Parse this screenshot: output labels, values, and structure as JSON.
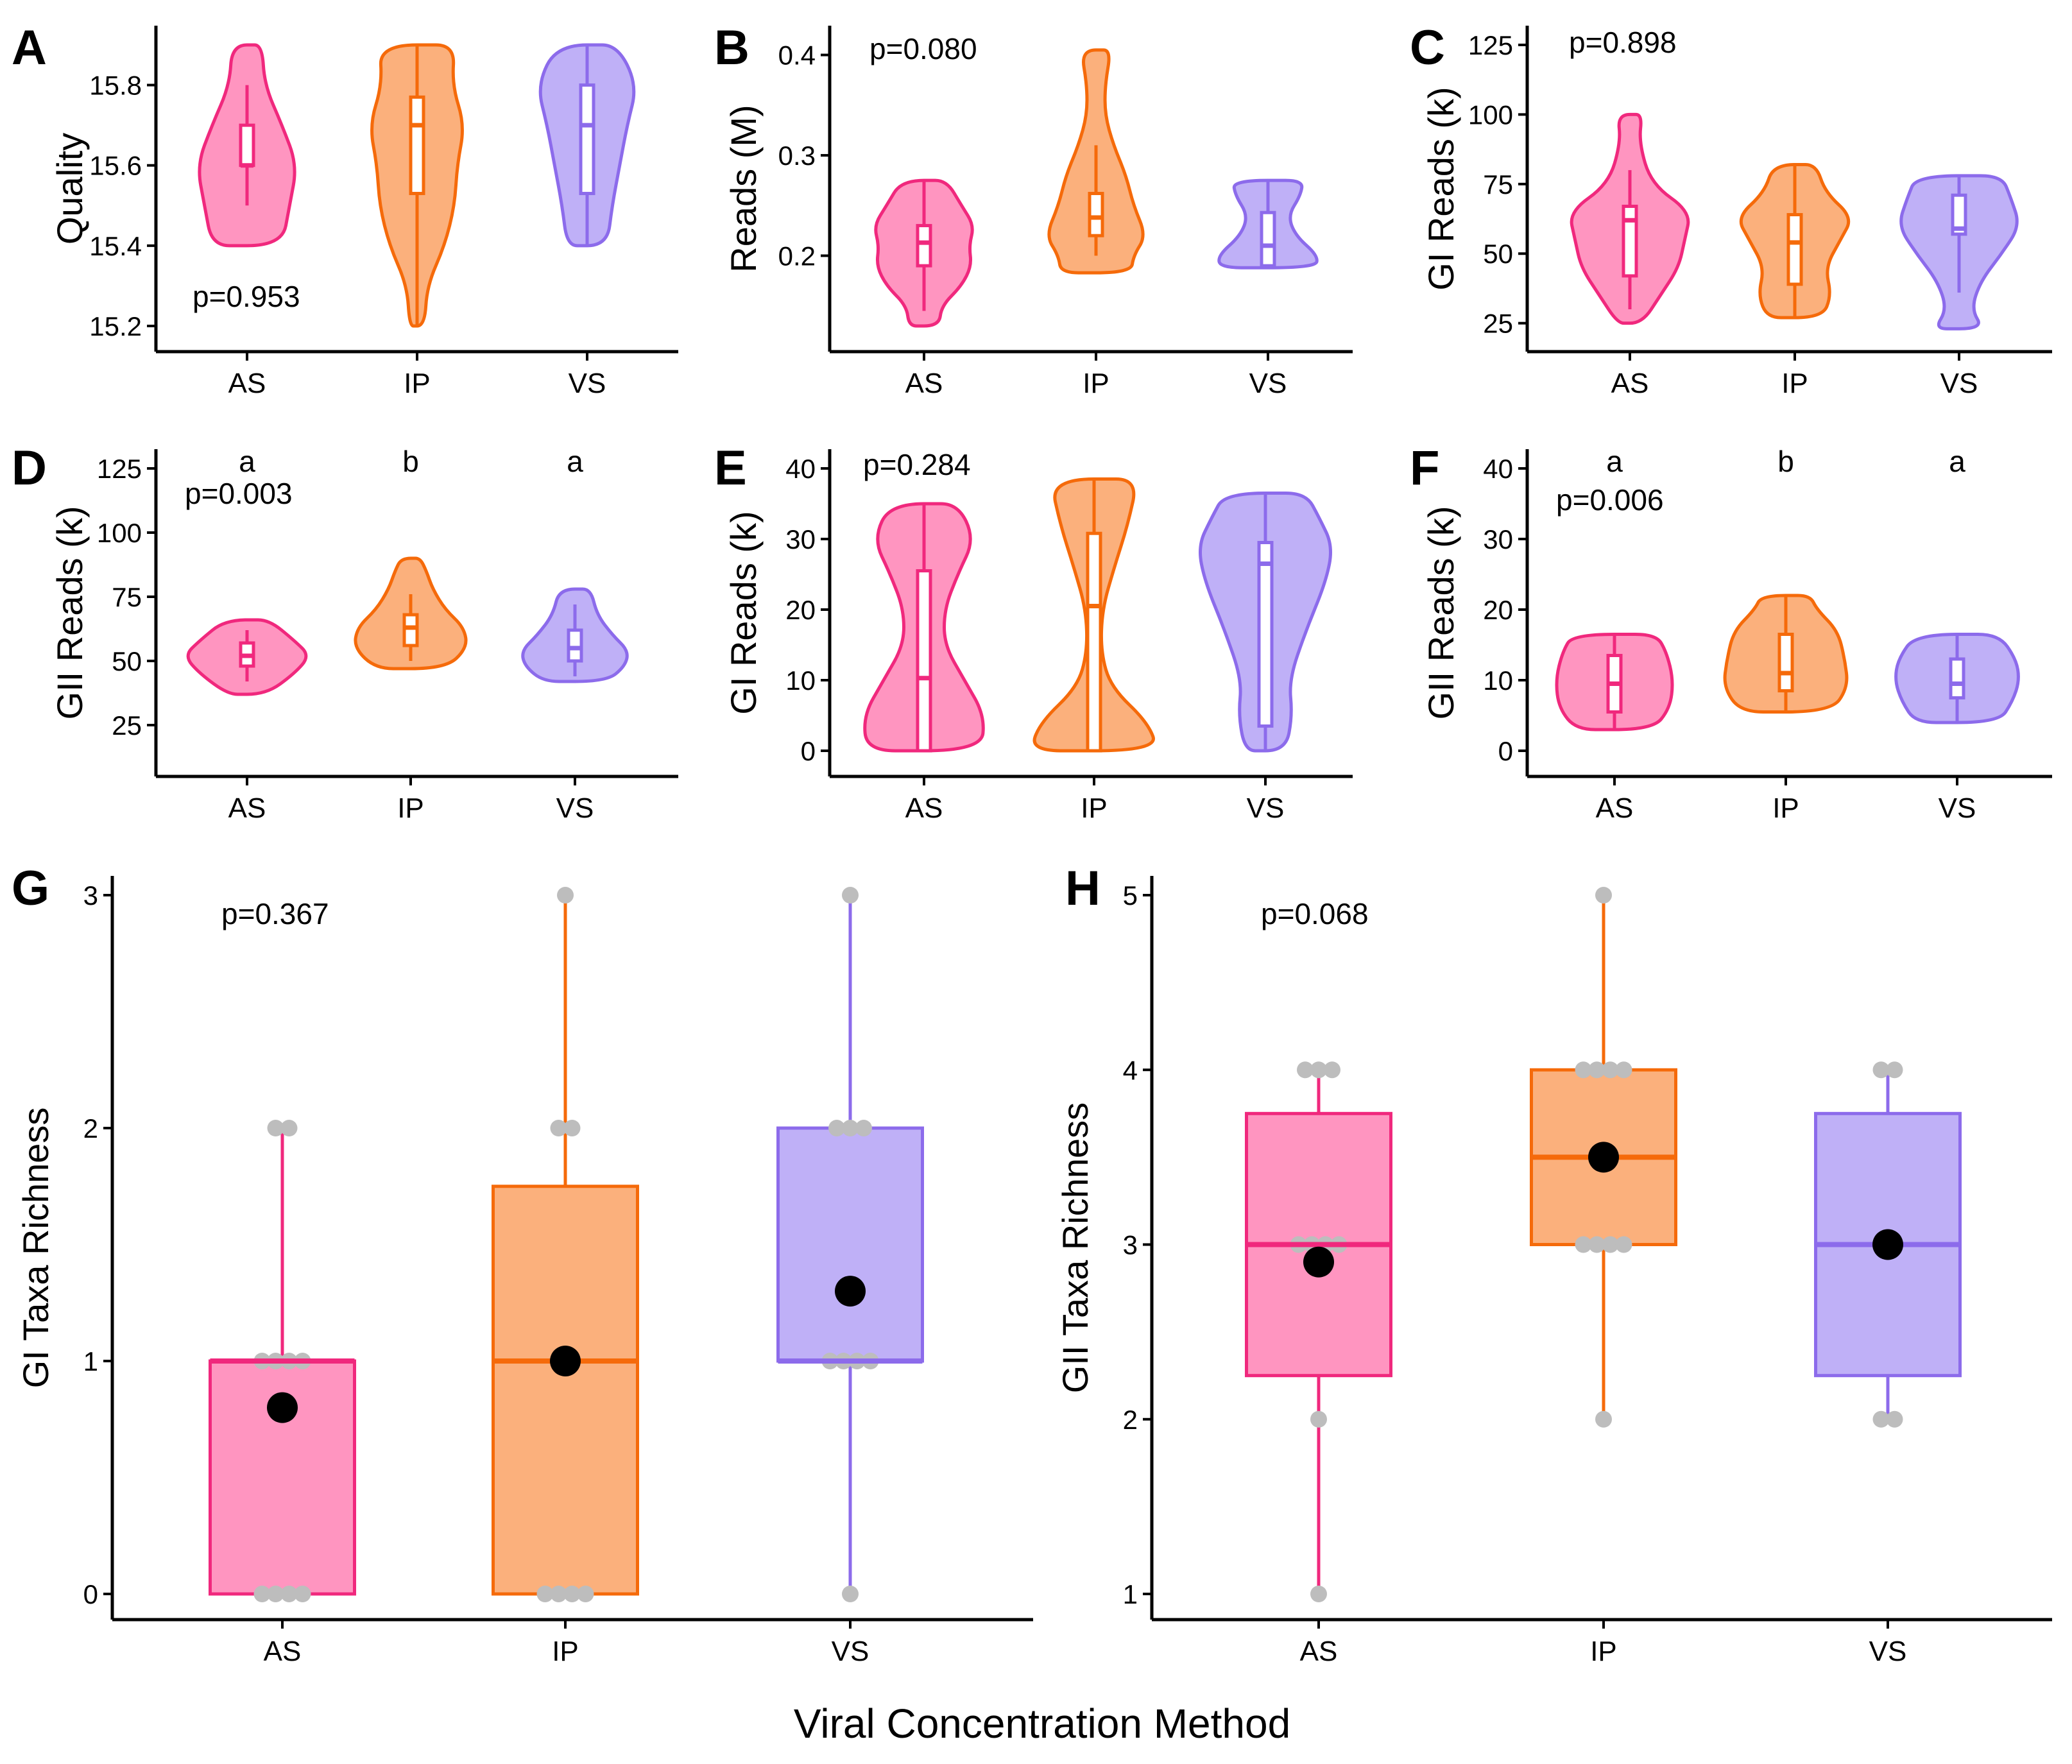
{
  "figure": {
    "x_axis_title": "Viral Concentration Method",
    "groups": [
      "AS",
      "IP",
      "VS"
    ],
    "colors": {
      "AS": {
        "line": "#F0287D",
        "fill": "#FF95C0"
      },
      "IP": {
        "line": "#F56A0A",
        "fill": "#FBB07C"
      },
      "VS": {
        "line": "#8C6BEB",
        "fill": "#BFB0F7"
      },
      "points": "#BDBDBD",
      "mean": "#000000"
    }
  },
  "chart_data": [
    {
      "panel": "A",
      "type": "violin",
      "ylabel": "Quality",
      "ylim": [
        15.2,
        15.9
      ],
      "yticks": [
        15.2,
        15.4,
        15.6,
        15.8
      ],
      "p_value": "p=0.953",
      "categories": [
        "AS",
        "IP",
        "VS"
      ],
      "series": [
        {
          "name": "AS",
          "min": 15.4,
          "q1": 15.6,
          "median": 15.6,
          "q3": 15.7,
          "max": 15.9,
          "whisker_low": 15.5,
          "whisker_high": 15.8,
          "density": [
            [
              15.4,
              0.7
            ],
            [
              15.5,
              0.85
            ],
            [
              15.6,
              1.0
            ],
            [
              15.7,
              0.7
            ],
            [
              15.8,
              0.35
            ],
            [
              15.9,
              0.3
            ]
          ]
        },
        {
          "name": "IP",
          "min": 15.2,
          "q1": 15.53,
          "median": 15.7,
          "q3": 15.77,
          "max": 15.9,
          "whisker_low": 15.2,
          "whisker_high": 15.9,
          "density": [
            [
              15.2,
              0.15
            ],
            [
              15.3,
              0.2
            ],
            [
              15.4,
              0.55
            ],
            [
              15.5,
              0.75
            ],
            [
              15.6,
              0.8
            ],
            [
              15.7,
              0.95
            ],
            [
              15.8,
              0.7
            ],
            [
              15.9,
              0.75
            ]
          ]
        },
        {
          "name": "VS",
          "min": 15.4,
          "q1": 15.53,
          "median": 15.7,
          "q3": 15.8,
          "max": 15.9,
          "whisker_low": 15.4,
          "whisker_high": 15.9,
          "density": [
            [
              15.4,
              0.4
            ],
            [
              15.5,
              0.5
            ],
            [
              15.6,
              0.65
            ],
            [
              15.7,
              0.8
            ],
            [
              15.8,
              1.0
            ],
            [
              15.9,
              0.6
            ]
          ]
        }
      ]
    },
    {
      "panel": "B",
      "type": "violin",
      "ylabel": "Reads (M)",
      "ylim": [
        0.13,
        0.41
      ],
      "yticks": [
        0.2,
        0.3,
        0.4
      ],
      "p_value": "p=0.080",
      "categories": [
        "AS",
        "IP",
        "VS"
      ],
      "series": [
        {
          "name": "AS",
          "min": 0.13,
          "q1": 0.19,
          "median": 0.213,
          "q3": 0.23,
          "max": 0.275,
          "whisker_low": 0.145,
          "whisker_high": 0.275,
          "density": [
            [
              0.13,
              0.3
            ],
            [
              0.15,
              0.35
            ],
            [
              0.17,
              0.75
            ],
            [
              0.19,
              0.95
            ],
            [
              0.21,
              0.9
            ],
            [
              0.23,
              1.0
            ],
            [
              0.25,
              0.75
            ],
            [
              0.275,
              0.45
            ]
          ]
        },
        {
          "name": "IP",
          "min": 0.183,
          "q1": 0.22,
          "median": 0.238,
          "q3": 0.262,
          "max": 0.405,
          "whisker_low": 0.2,
          "whisker_high": 0.31,
          "density": [
            [
              0.183,
              0.7
            ],
            [
              0.2,
              0.75
            ],
            [
              0.22,
              1.0
            ],
            [
              0.25,
              0.75
            ],
            [
              0.28,
              0.6
            ],
            [
              0.31,
              0.35
            ],
            [
              0.34,
              0.18
            ],
            [
              0.37,
              0.18
            ],
            [
              0.405,
              0.3
            ]
          ]
        },
        {
          "name": "VS",
          "min": 0.188,
          "q1": 0.19,
          "median": 0.21,
          "q3": 0.243,
          "max": 0.275,
          "whisker_low": 0.188,
          "whisker_high": 0.275,
          "density": [
            [
              0.188,
              0.95
            ],
            [
              0.2,
              1.0
            ],
            [
              0.22,
              0.55
            ],
            [
              0.24,
              0.4
            ],
            [
              0.26,
              0.65
            ],
            [
              0.275,
              0.7
            ]
          ]
        }
      ]
    },
    {
      "panel": "C",
      "type": "violin",
      "ylabel": "GI Reads (k)",
      "ylim": [
        24,
        125
      ],
      "yticks": [
        25,
        50,
        75,
        100,
        125
      ],
      "p_value": "p=0.898",
      "categories": [
        "AS",
        "IP",
        "VS"
      ],
      "series": [
        {
          "name": "AS",
          "min": 25,
          "q1": 42,
          "median": 62,
          "q3": 67,
          "max": 100,
          "whisker_low": 30,
          "whisker_high": 80,
          "density": [
            [
              25,
              0.2
            ],
            [
              35,
              0.5
            ],
            [
              45,
              0.8
            ],
            [
              55,
              0.9
            ],
            [
              65,
              1.0
            ],
            [
              75,
              0.35
            ],
            [
              90,
              0.15
            ],
            [
              100,
              0.2
            ]
          ]
        },
        {
          "name": "IP",
          "min": 27,
          "q1": 39,
          "median": 54,
          "q3": 64,
          "max": 82,
          "whisker_low": 27,
          "whisker_high": 82,
          "density": [
            [
              27,
              0.45
            ],
            [
              35,
              0.6
            ],
            [
              45,
              0.5
            ],
            [
              55,
              0.75
            ],
            [
              63,
              0.95
            ],
            [
              72,
              0.5
            ],
            [
              82,
              0.35
            ]
          ]
        },
        {
          "name": "VS",
          "min": 23,
          "q1": 57,
          "median": 59,
          "q3": 71,
          "max": 78,
          "whisker_low": 36,
          "whisker_high": 78,
          "density": [
            [
              23,
              0.4
            ],
            [
              30,
              0.2
            ],
            [
              40,
              0.35
            ],
            [
              50,
              0.7
            ],
            [
              60,
              1.0
            ],
            [
              70,
              0.85
            ],
            [
              78,
              0.7
            ]
          ]
        }
      ]
    },
    {
      "panel": "D",
      "type": "violin",
      "ylabel": "GII Reads (k)",
      "ylim": [
        15,
        125
      ],
      "yticks": [
        25,
        50,
        75,
        100,
        125
      ],
      "p_value": "p=0.003",
      "letters": [
        "a",
        "b",
        "a"
      ],
      "categories": [
        "AS",
        "IP",
        "VS"
      ],
      "series": [
        {
          "name": "AS",
          "min": 37,
          "q1": 48,
          "median": 52,
          "q3": 57,
          "max": 66,
          "whisker_low": 42,
          "whisker_high": 62,
          "density": [
            [
              37,
              0.3
            ],
            [
              45,
              0.75
            ],
            [
              52,
              1.0
            ],
            [
              58,
              0.75
            ],
            [
              66,
              0.35
            ]
          ]
        },
        {
          "name": "IP",
          "min": 47,
          "q1": 56,
          "median": 63,
          "q3": 68,
          "max": 90,
          "whisker_low": 50,
          "whisker_high": 76,
          "density": [
            [
              47,
              0.55
            ],
            [
              55,
              0.9
            ],
            [
              63,
              0.85
            ],
            [
              70,
              0.55
            ],
            [
              78,
              0.35
            ],
            [
              85,
              0.25
            ],
            [
              90,
              0.15
            ]
          ]
        },
        {
          "name": "VS",
          "min": 42,
          "q1": 50,
          "median": 55,
          "q3": 62,
          "max": 78,
          "whisker_low": 44,
          "whisker_high": 72,
          "density": [
            [
              42,
              0.5
            ],
            [
              48,
              0.8
            ],
            [
              54,
              0.85
            ],
            [
              60,
              0.6
            ],
            [
              68,
              0.35
            ],
            [
              78,
              0.25
            ]
          ]
        }
      ]
    },
    {
      "panel": "E",
      "type": "violin",
      "ylabel": "GI Reads (k)",
      "ylim": [
        0,
        40
      ],
      "yticks": [
        0,
        10,
        20,
        30,
        40
      ],
      "p_value": "p=0.284",
      "categories": [
        "AS",
        "IP",
        "VS"
      ],
      "series": [
        {
          "name": "AS",
          "min": 0,
          "q1": 0,
          "median": 10.3,
          "q3": 25.5,
          "max": 35,
          "whisker_low": 0,
          "whisker_high": 35,
          "density": [
            [
              0,
              0.85
            ],
            [
              5,
              0.9
            ],
            [
              10,
              0.6
            ],
            [
              15,
              0.3
            ],
            [
              20,
              0.3
            ],
            [
              25,
              0.5
            ],
            [
              30,
              0.75
            ],
            [
              35,
              0.5
            ]
          ]
        },
        {
          "name": "IP",
          "min": 0,
          "q1": 0,
          "median": 20.5,
          "q3": 30.8,
          "max": 38.5,
          "whisker_low": 0,
          "whisker_high": 38.5,
          "density": [
            [
              0,
              0.95
            ],
            [
              4,
              0.8
            ],
            [
              9,
              0.25
            ],
            [
              14,
              0.1
            ],
            [
              20,
              0.12
            ],
            [
              26,
              0.3
            ],
            [
              32,
              0.5
            ],
            [
              38.5,
              0.65
            ]
          ]
        },
        {
          "name": "VS",
          "min": 0,
          "q1": 3.5,
          "median": 26.5,
          "q3": 29.5,
          "max": 36.5,
          "whisker_low": 0,
          "whisker_high": 36.5,
          "density": [
            [
              0,
              0.3
            ],
            [
              5,
              0.4
            ],
            [
              10,
              0.35
            ],
            [
              17,
              0.6
            ],
            [
              24,
              0.9
            ],
            [
              29,
              1.0
            ],
            [
              33,
              0.8
            ],
            [
              36.5,
              0.6
            ]
          ]
        }
      ]
    },
    {
      "panel": "F",
      "type": "violin",
      "ylabel": "GII Reads (k)",
      "ylim": [
        0,
        40
      ],
      "yticks": [
        0,
        10,
        20,
        30,
        40
      ],
      "p_value": "p=0.006",
      "letters": [
        "a",
        "b",
        "a"
      ],
      "categories": [
        "AS",
        "IP",
        "VS"
      ],
      "series": [
        {
          "name": "AS",
          "min": 3,
          "q1": 5.5,
          "median": 9.5,
          "q3": 13.5,
          "max": 16.5,
          "whisker_low": 3,
          "whisker_high": 16.5,
          "density": [
            [
              3,
              0.55
            ],
            [
              6,
              0.8
            ],
            [
              10,
              0.85
            ],
            [
              14,
              0.75
            ],
            [
              16.5,
              0.6
            ]
          ]
        },
        {
          "name": "IP",
          "min": 5.5,
          "q1": 8.5,
          "median": 11,
          "q3": 16.5,
          "max": 22,
          "whisker_low": 5.5,
          "whisker_high": 22,
          "density": [
            [
              5.5,
              0.65
            ],
            [
              9,
              0.9
            ],
            [
              13,
              0.85
            ],
            [
              17,
              0.75
            ],
            [
              20,
              0.45
            ],
            [
              22,
              0.35
            ]
          ]
        },
        {
          "name": "VS",
          "min": 4,
          "q1": 7.5,
          "median": 9.5,
          "q3": 13,
          "max": 16.5,
          "whisker_low": 4,
          "whisker_high": 16.5,
          "density": [
            [
              4,
              0.6
            ],
            [
              7,
              0.8
            ],
            [
              10,
              0.9
            ],
            [
              13,
              0.85
            ],
            [
              16.5,
              0.6
            ]
          ]
        }
      ]
    },
    {
      "panel": "G",
      "type": "box",
      "ylabel": "GI Taxa Richness",
      "ylim": [
        0,
        3
      ],
      "yticks": [
        0,
        1,
        2,
        3
      ],
      "p_value": "p=0.367",
      "categories": [
        "AS",
        "IP",
        "VS"
      ],
      "series": [
        {
          "name": "AS",
          "q1": 0,
          "median": 1,
          "q3": 1,
          "whisker_low": 0,
          "whisker_high": 2,
          "mean": 0.8,
          "points": [
            0,
            0,
            0,
            0,
            1,
            1,
            1,
            1,
            2,
            2
          ]
        },
        {
          "name": "IP",
          "q1": 0,
          "median": 1,
          "q3": 1.75,
          "whisker_low": 0,
          "whisker_high": 3,
          "mean": 1.0,
          "points": [
            0,
            0,
            0,
            0,
            1,
            1,
            2,
            2,
            3
          ]
        },
        {
          "name": "VS",
          "q1": 1,
          "median": 1,
          "q3": 2,
          "whisker_low": 0,
          "whisker_high": 3,
          "mean": 1.3,
          "points": [
            0,
            1,
            1,
            1,
            1,
            2,
            2,
            2,
            3
          ]
        }
      ]
    },
    {
      "panel": "H",
      "type": "box",
      "ylabel": "GII Taxa Richness",
      "ylim": [
        1,
        5
      ],
      "yticks": [
        1,
        2,
        3,
        4,
        5
      ],
      "p_value": "p=0.068",
      "categories": [
        "AS",
        "IP",
        "VS"
      ],
      "series": [
        {
          "name": "AS",
          "q1": 2.25,
          "median": 3,
          "q3": 3.75,
          "whisker_low": 1,
          "whisker_high": 4,
          "mean": 2.9,
          "points": [
            1,
            2,
            3,
            3,
            3,
            3,
            4,
            4,
            4
          ]
        },
        {
          "name": "IP",
          "q1": 3,
          "median": 3.5,
          "q3": 4,
          "whisker_low": 2,
          "whisker_high": 5,
          "mean": 3.5,
          "points": [
            2,
            3,
            3,
            3,
            3,
            4,
            4,
            4,
            4,
            5
          ]
        },
        {
          "name": "VS",
          "q1": 2.25,
          "median": 3,
          "q3": 3.75,
          "whisker_low": 2,
          "whisker_high": 4,
          "mean": 3.0,
          "points": [
            2,
            2,
            3,
            3,
            4,
            4
          ]
        }
      ]
    }
  ]
}
